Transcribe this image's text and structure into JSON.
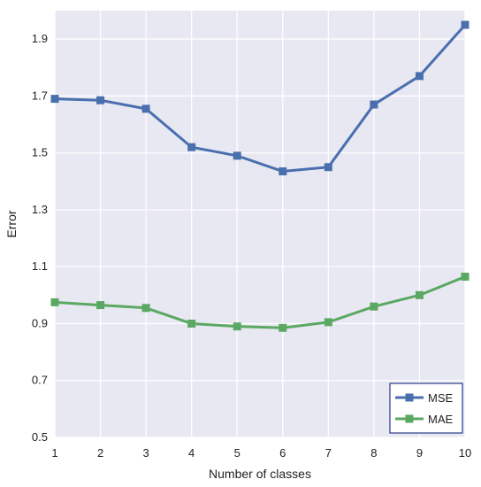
{
  "chart_data": {
    "type": "line",
    "xlabel": "Number of classes",
    "ylabel": "Error",
    "x": [
      1,
      2,
      3,
      4,
      5,
      6,
      7,
      8,
      9,
      10
    ],
    "xlim": [
      1,
      10
    ],
    "ylim": [
      0.5,
      2.0
    ],
    "yticks": [
      "0.5",
      "0.7",
      "0.9",
      "1.1",
      "1.3",
      "1.5",
      "1.7",
      "1.9"
    ],
    "xticks": [
      "1",
      "2",
      "3",
      "4",
      "5",
      "6",
      "7",
      "8",
      "9",
      "10"
    ],
    "grid": true,
    "legend_position": "bottom-right",
    "background_color": "#e8e8f2",
    "series": [
      {
        "name": "MSE",
        "color": "#4a6fae",
        "marker": "square",
        "values": [
          1.69,
          1.685,
          1.655,
          1.52,
          1.49,
          1.435,
          1.45,
          1.67,
          1.77,
          1.95
        ]
      },
      {
        "name": "MAE",
        "color": "#5aa862",
        "marker": "square",
        "values": [
          0.975,
          0.965,
          0.955,
          0.9,
          0.89,
          0.885,
          0.905,
          0.96,
          1.0,
          1.065
        ]
      }
    ]
  }
}
